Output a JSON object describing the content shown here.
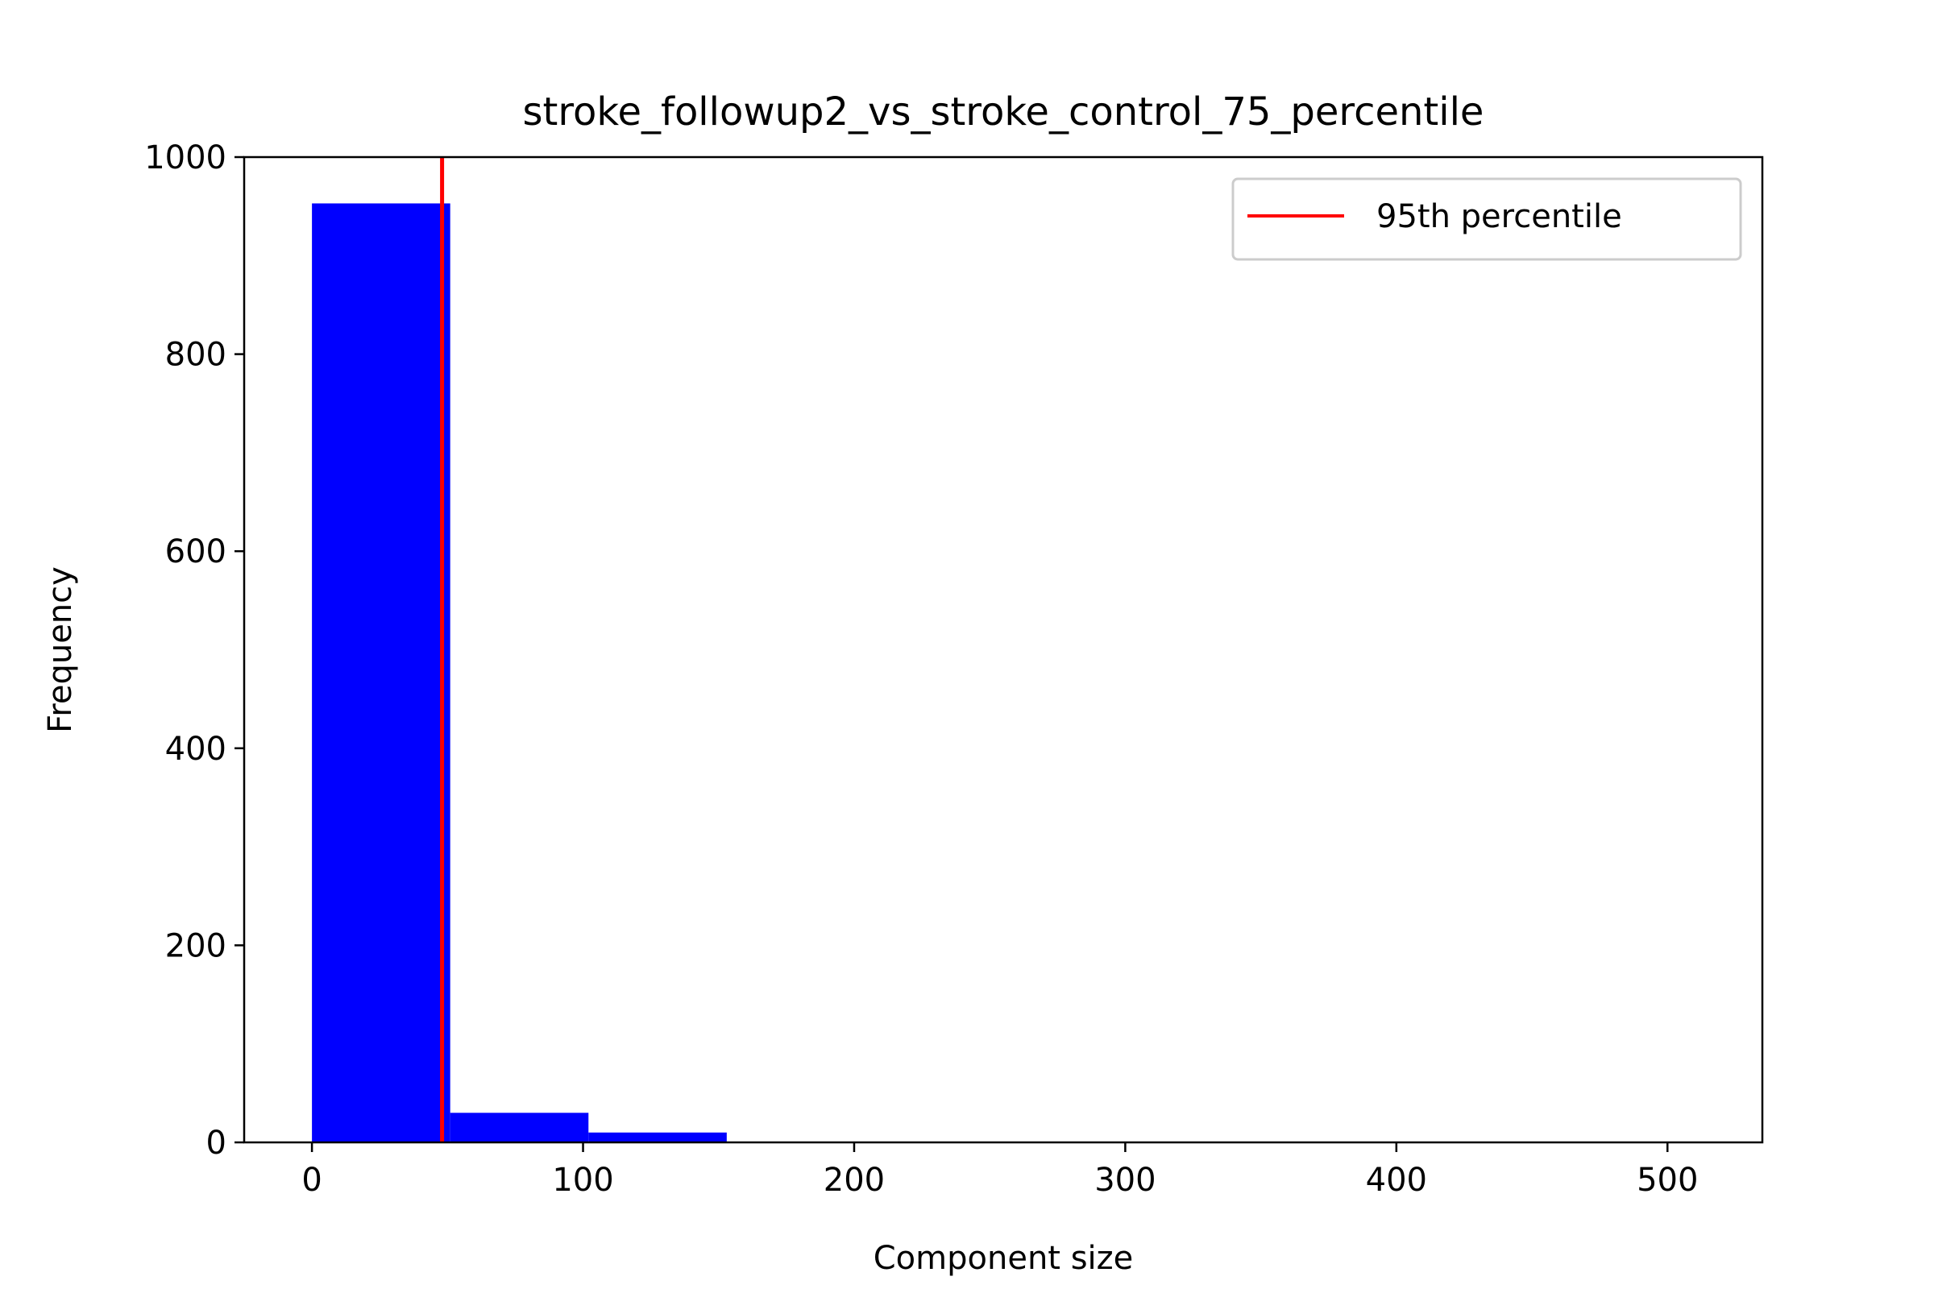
{
  "chart_data": {
    "type": "bar",
    "title": "stroke_followup2_vs_stroke_control_75_percentile",
    "xlabel": "Component size",
    "ylabel": "Frequency",
    "xlim": [
      -25,
      535
    ],
    "ylim": [
      0,
      1000
    ],
    "xticks": [
      0,
      100,
      200,
      300,
      400,
      500
    ],
    "yticks": [
      0,
      200,
      400,
      600,
      800,
      1000
    ],
    "bins": [
      {
        "x0": 0,
        "x1": 51,
        "count": 953
      },
      {
        "x0": 51,
        "x1": 102,
        "count": 30
      },
      {
        "x0": 102,
        "x1": 153,
        "count": 10
      },
      {
        "x0": 153,
        "x1": 204,
        "count": 0
      },
      {
        "x0": 204,
        "x1": 255,
        "count": 0
      },
      {
        "x0": 255,
        "x1": 306,
        "count": 0
      },
      {
        "x0": 306,
        "x1": 357,
        "count": 0
      },
      {
        "x0": 357,
        "x1": 408,
        "count": 0
      },
      {
        "x0": 408,
        "x1": 459,
        "count": 0
      },
      {
        "x0": 459,
        "x1": 510,
        "count": 0
      }
    ],
    "bar_color": "#0000ff",
    "percentile_line": {
      "label": "95th percentile",
      "x": 48,
      "color": "#ff0000"
    },
    "legend_position": "top-right",
    "grid": false
  }
}
